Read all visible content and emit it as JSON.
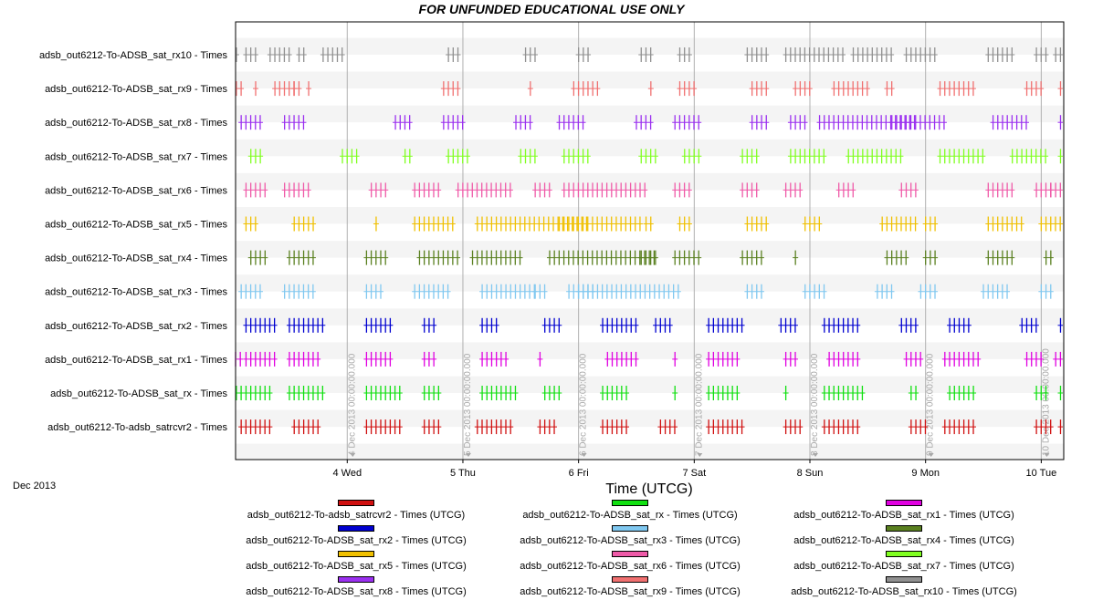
{
  "chart_data": {
    "type": "timeline",
    "title": "FOR UNFUNDED EDUCATIONAL USE ONLY",
    "xlabel": "Time (UTCG)",
    "x_period_label": "Dec 2013",
    "xlim": [
      "2013-12-03 00:50",
      "2013-12-10 04:40"
    ],
    "x_ticks": [
      {
        "date": "2013-12-04",
        "label": "4 Wed"
      },
      {
        "date": "2013-12-05",
        "label": "5 Thu"
      },
      {
        "date": "2013-12-06",
        "label": "6 Fri"
      },
      {
        "date": "2013-12-07",
        "label": "7 Sat"
      },
      {
        "date": "2013-12-08",
        "label": "8 Sun"
      },
      {
        "date": "2013-12-09",
        "label": "9 Mon"
      },
      {
        "date": "2013-12-10",
        "label": "10 Tue"
      }
    ],
    "day_markers": [
      {
        "date": "2013-12-04",
        "label": "4 Dec 2013 00:00:00.000"
      },
      {
        "date": "2013-12-05",
        "label": "5 Dec 2013 00:00:00.000"
      },
      {
        "date": "2013-12-06",
        "label": "6 Dec 2013 00:00:00.000"
      },
      {
        "date": "2013-12-07",
        "label": "7 Dec 2013 00:00:00.000"
      },
      {
        "date": "2013-12-08",
        "label": "8 Dec 2013 00:00:00.000"
      },
      {
        "date": "2013-12-09",
        "label": "9 Dec 2013 00:00:00.000"
      },
      {
        "date": "2013-12-10",
        "label": "10 Dec 2013 00:00:00.000"
      }
    ],
    "grid": "vertical day lines, alternating row bands",
    "legend_position": "bottom",
    "series": [
      {
        "name": "adsb_out6212-To-ADSB_sat_rx10 - Times",
        "legend": "adsb_out6212-To-ADSB_sat_rx10 - Times (UTCG)",
        "color": "#909090",
        "windows": [
          [
            "12-03 01:00",
            1
          ],
          [
            "12-03 03:00",
            3
          ],
          [
            "12-03 08:00",
            5
          ],
          [
            "12-03 14:00",
            2
          ],
          [
            "12-03 19:00",
            5
          ],
          [
            "12-04 21:00",
            3
          ],
          [
            "12-05 13:00",
            3
          ],
          [
            "12-06 00:00",
            3
          ],
          [
            "12-06 13:00",
            3
          ],
          [
            "12-06 21:00",
            3
          ],
          [
            "12-07 11:00",
            5
          ],
          [
            "12-07 19:00",
            13
          ],
          [
            "12-08 09:00",
            9
          ],
          [
            "12-08 20:00",
            7
          ],
          [
            "12-09 13:00",
            6
          ],
          [
            "12-09 23:00",
            3
          ],
          [
            "12-10 03:00",
            2
          ]
        ]
      },
      {
        "name": "adsb_out6212-To-ADSB_sat_rx9 - Times",
        "legend": "adsb_out6212-To-ADSB_sat_rx9 - Times (UTCG)",
        "color": "#f07070",
        "windows": [
          [
            "12-03 01:00",
            2
          ],
          [
            "12-03 05:00",
            1
          ],
          [
            "12-03 09:00",
            5
          ],
          [
            "12-03 13:00",
            2
          ],
          [
            "12-03 16:00",
            1
          ],
          [
            "12-04 20:00",
            4
          ],
          [
            "12-05 14:00",
            1
          ],
          [
            "12-05 23:00",
            6
          ],
          [
            "12-06 15:00",
            1
          ],
          [
            "12-06 21:00",
            4
          ],
          [
            "12-07 12:00",
            4
          ],
          [
            "12-07 21:00",
            4
          ],
          [
            "12-08 05:00",
            8
          ],
          [
            "12-08 16:00",
            2
          ],
          [
            "12-09 03:00",
            8
          ],
          [
            "12-09 21:00",
            4
          ],
          [
            "12-10 04:00",
            3
          ]
        ]
      },
      {
        "name": "adsb_out6212-To-ADSB_sat_rx8 - Times",
        "legend": "adsb_out6212-To-ADSB_sat_rx8 - Times (UTCG)",
        "color": "#9b30f0",
        "windows": [
          [
            "12-03 02:00",
            5
          ],
          [
            "12-03 11:00",
            5
          ],
          [
            "12-04 10:00",
            4
          ],
          [
            "12-04 20:00",
            5
          ],
          [
            "12-05 11:00",
            4
          ],
          [
            "12-05 20:00",
            6
          ],
          [
            "12-06 12:00",
            4
          ],
          [
            "12-06 20:00",
            6
          ],
          [
            "12-07 12:00",
            4
          ],
          [
            "12-07 20:00",
            4
          ],
          [
            "12-08 02:00",
            21
          ],
          [
            "12-08 17:00",
            12
          ],
          [
            "12-09 14:00",
            8
          ],
          [
            "12-10 04:00",
            3
          ]
        ]
      },
      {
        "name": "adsb_out6212-To-ADSB_sat_rx7 - Times",
        "legend": "adsb_out6212-To-ADSB_sat_rx7 - Times (UTCG)",
        "color": "#80ff20",
        "windows": [
          [
            "12-03 04:00",
            3
          ],
          [
            "12-03 23:00",
            4
          ],
          [
            "12-04 12:00",
            2
          ],
          [
            "12-04 21:00",
            5
          ],
          [
            "12-05 12:00",
            4
          ],
          [
            "12-05 21:00",
            6
          ],
          [
            "12-06 13:00",
            4
          ],
          [
            "12-06 22:00",
            4
          ],
          [
            "12-07 10:00",
            4
          ],
          [
            "12-07 20:00",
            8
          ],
          [
            "12-08 08:00",
            12
          ],
          [
            "12-09 03:00",
            10
          ],
          [
            "12-09 18:00",
            8
          ],
          [
            "12-10 04:00",
            2
          ]
        ]
      },
      {
        "name": "adsb_out6212-To-ADSB_sat_rx6 - Times",
        "legend": "adsb_out6212-To-ADSB_sat_rx6 - Times (UTCG)",
        "color": "#ef5aa8",
        "windows": [
          [
            "12-03 03:00",
            5
          ],
          [
            "12-03 11:00",
            6
          ],
          [
            "12-04 05:00",
            4
          ],
          [
            "12-04 14:00",
            6
          ],
          [
            "12-04 23:00",
            12
          ],
          [
            "12-05 15:00",
            4
          ],
          [
            "12-05 21:00",
            18
          ],
          [
            "12-06 20:00",
            4
          ],
          [
            "12-07 10:00",
            4
          ],
          [
            "12-07 19:00",
            4
          ],
          [
            "12-08 06:00",
            4
          ],
          [
            "12-08 19:00",
            4
          ],
          [
            "12-09 13:00",
            6
          ],
          [
            "12-09 23:00",
            4
          ],
          [
            "12-10 02:00",
            4
          ]
        ]
      },
      {
        "name": "adsb_out6212-To-ADSB_sat_rx5 - Times",
        "legend": "adsb_out6212-To-ADSB_sat_rx5 - Times (UTCG)",
        "color": "#f0c000",
        "windows": [
          [
            "12-03 03:00",
            3
          ],
          [
            "12-03 13:00",
            5
          ],
          [
            "12-04 06:00",
            1
          ],
          [
            "12-04 14:00",
            9
          ],
          [
            "12-05 03:00",
            24
          ],
          [
            "12-05 20:00",
            18
          ],
          [
            "12-06 14:00",
            2
          ],
          [
            "12-06 21:00",
            3
          ],
          [
            "12-07 11:00",
            5
          ],
          [
            "12-07 23:00",
            4
          ],
          [
            "12-08 15:00",
            8
          ],
          [
            "12-09 00:00",
            3
          ],
          [
            "12-09 13:00",
            8
          ],
          [
            "12-10 00:00",
            5
          ]
        ]
      },
      {
        "name": "adsb_out6212-To-ADSB_sat_rx4 - Times",
        "legend": "adsb_out6212-To-ADSB_sat_rx4 - Times (UTCG)",
        "color": "#5a8020",
        "windows": [
          [
            "12-03 04:00",
            4
          ],
          [
            "12-03 12:00",
            6
          ],
          [
            "12-04 04:00",
            5
          ],
          [
            "12-04 15:00",
            9
          ],
          [
            "12-05 02:00",
            11
          ],
          [
            "12-05 18:00",
            23
          ],
          [
            "12-06 13:00",
            4
          ],
          [
            "12-06 20:00",
            6
          ],
          [
            "12-07 10:00",
            5
          ],
          [
            "12-07 21:00",
            1
          ],
          [
            "12-08 16:00",
            5
          ],
          [
            "12-09 00:00",
            3
          ],
          [
            "12-09 13:00",
            6
          ],
          [
            "12-10 01:00",
            2
          ]
        ]
      },
      {
        "name": "adsb_out6212-To-ADSB_sat_rx3 - Times",
        "legend": "adsb_out6212-To-ADSB_sat_rx3 - Times (UTCG)",
        "color": "#80c8f0",
        "windows": [
          [
            "12-03 02:00",
            5
          ],
          [
            "12-03 11:00",
            7
          ],
          [
            "12-04 04:00",
            4
          ],
          [
            "12-04 14:00",
            8
          ],
          [
            "12-05 04:00",
            12
          ],
          [
            "12-05 15:00",
            3
          ],
          [
            "12-05 22:00",
            6
          ],
          [
            "12-06 00:00",
            22
          ],
          [
            "12-07 11:00",
            4
          ],
          [
            "12-07 23:00",
            5
          ],
          [
            "12-08 14:00",
            4
          ],
          [
            "12-08 23:00",
            4
          ],
          [
            "12-09 12:00",
            6
          ],
          [
            "12-10 00:00",
            3
          ]
        ]
      },
      {
        "name": "adsb_out6212-To-ADSB_sat_rx2 - Times",
        "legend": "adsb_out6212-To-ADSB_sat_rx2 - Times (UTCG)",
        "color": "#0000d0",
        "windows": [
          [
            "12-03 03:00",
            7
          ],
          [
            "12-03 12:00",
            8
          ],
          [
            "12-04 04:00",
            6
          ],
          [
            "12-04 16:00",
            3
          ],
          [
            "12-05 04:00",
            4
          ],
          [
            "12-05 17:00",
            4
          ],
          [
            "12-06 05:00",
            8
          ],
          [
            "12-06 16:00",
            4
          ],
          [
            "12-07 03:00",
            8
          ],
          [
            "12-07 18:00",
            4
          ],
          [
            "12-08 03:00",
            8
          ],
          [
            "12-08 19:00",
            4
          ],
          [
            "12-09 05:00",
            5
          ],
          [
            "12-09 20:00",
            4
          ],
          [
            "12-10 04:00",
            4
          ]
        ]
      },
      {
        "name": "adsb_out6212-To-ADSB_sat_rx1 - Times",
        "legend": "adsb_out6212-To-ADSB_sat_rx1 - Times (UTCG)",
        "color": "#e000e0",
        "windows": [
          [
            "12-03 00:50",
            2
          ],
          [
            "12-03 03:00",
            7
          ],
          [
            "12-03 12:00",
            7
          ],
          [
            "12-04 04:00",
            6
          ],
          [
            "12-04 16:00",
            3
          ],
          [
            "12-05 04:00",
            6
          ],
          [
            "12-05 16:00",
            1
          ],
          [
            "12-06 06:00",
            7
          ],
          [
            "12-06 20:00",
            1
          ],
          [
            "12-07 03:00",
            7
          ],
          [
            "12-07 19:00",
            3
          ],
          [
            "12-08 04:00",
            7
          ],
          [
            "12-08 20:00",
            4
          ],
          [
            "12-09 04:00",
            8
          ],
          [
            "12-09 21:00",
            4
          ],
          [
            "12-10 03:00",
            5
          ]
        ]
      },
      {
        "name": "adsb_out6212-To-ADSB_sat_rx - Times",
        "legend": "adsb_out6212-To-ADSB_sat_rx - Times (UTCG)",
        "color": "#10e010",
        "windows": [
          [
            "12-03 01:00",
            2
          ],
          [
            "12-03 03:00",
            6
          ],
          [
            "12-03 12:00",
            8
          ],
          [
            "12-04 04:00",
            8
          ],
          [
            "12-04 16:00",
            4
          ],
          [
            "12-05 04:00",
            8
          ],
          [
            "12-05 17:00",
            4
          ],
          [
            "12-06 05:00",
            6
          ],
          [
            "12-06 20:00",
            1
          ],
          [
            "12-07 03:00",
            7
          ],
          [
            "12-07 19:00",
            1
          ],
          [
            "12-08 03:00",
            9
          ],
          [
            "12-08 21:00",
            2
          ],
          [
            "12-09 05:00",
            6
          ],
          [
            "12-09 23:00",
            3
          ],
          [
            "12-10 04:00",
            3
          ]
        ]
      },
      {
        "name": "adsb_out6212-To-adsb_satrcvr2 - Times",
        "legend": "adsb_out6212-To-adsb_satrcvr2 - Times (UTCG)",
        "color": "#d01010",
        "windows": [
          [
            "12-03 02:00",
            7
          ],
          [
            "12-03 13:00",
            6
          ],
          [
            "12-04 04:00",
            8
          ],
          [
            "12-04 16:00",
            4
          ],
          [
            "12-05 03:00",
            8
          ],
          [
            "12-05 16:00",
            4
          ],
          [
            "12-06 05:00",
            6
          ],
          [
            "12-06 17:00",
            4
          ],
          [
            "12-07 03:00",
            8
          ],
          [
            "12-07 19:00",
            4
          ],
          [
            "12-08 03:00",
            8
          ],
          [
            "12-08 21:00",
            4
          ],
          [
            "12-09 04:00",
            7
          ],
          [
            "12-09 23:00",
            4
          ],
          [
            "12-10 04:00",
            4
          ]
        ]
      }
    ]
  }
}
